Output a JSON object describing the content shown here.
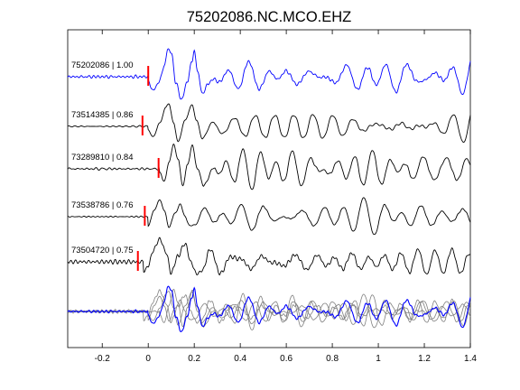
{
  "chart_data": {
    "type": "line",
    "title": "75202086.NC.MCO.EHZ",
    "xlabel": "",
    "ylabel": "",
    "xlim": [
      -0.35,
      1.4
    ],
    "xticks": [
      -0.2,
      0,
      0.2,
      0.4,
      0.6,
      0.8,
      1,
      1.2,
      1.4
    ],
    "xtick_labels": [
      "-0.2",
      "0",
      "0.2",
      "0.4",
      "0.6",
      "0.8",
      "1",
      "1.2",
      "1.4"
    ],
    "grid": false,
    "colors": {
      "reference": "#0000ff",
      "trace": "#000000",
      "pick": "#ff0000",
      "overlay": "#808080"
    },
    "series": [
      {
        "name": "75202086 | 1.00",
        "color": "#0000ff",
        "pick_time": 0.0,
        "seed": 1,
        "amplitude": 1.0,
        "onset": -0.005,
        "arrival": [
          [
            0.0,
            -0.15
          ],
          [
            0.02,
            -0.45
          ],
          [
            0.045,
            -0.2
          ],
          [
            0.07,
            0.35
          ],
          [
            0.085,
            0.9
          ],
          [
            0.1,
            0.8
          ],
          [
            0.12,
            -0.2
          ],
          [
            0.145,
            -0.75
          ],
          [
            0.17,
            -0.15
          ],
          [
            0.19,
            0.5
          ],
          [
            0.2,
            0.85
          ],
          [
            0.215,
            0.15
          ],
          [
            0.235,
            -0.55
          ],
          [
            0.26,
            -0.25
          ]
        ],
        "coda": 0.4,
        "pre_noise": 0.06
      },
      {
        "name": "73514385 | 0.86",
        "color": "#000000",
        "pick_time": -0.025,
        "seed": 2,
        "amplitude": 1.0,
        "onset": -0.01,
        "arrival": [
          [
            0.0,
            -0.1
          ],
          [
            0.02,
            -0.35
          ],
          [
            0.05,
            0.1
          ],
          [
            0.075,
            0.6
          ],
          [
            0.09,
            0.75
          ],
          [
            0.11,
            0.1
          ],
          [
            0.13,
            -0.5
          ],
          [
            0.16,
            0.2
          ],
          [
            0.19,
            0.7
          ],
          [
            0.21,
            0.2
          ],
          [
            0.235,
            -0.4
          ]
        ],
        "coda": 0.45,
        "pre_noise": 0.05
      },
      {
        "name": "73289810 | 0.84",
        "color": "#000000",
        "pick_time": 0.045,
        "seed": 3,
        "amplitude": 1.0,
        "onset": 0.03,
        "arrival": [
          [
            0.05,
            -0.15
          ],
          [
            0.07,
            -0.4
          ],
          [
            0.09,
            0.2
          ],
          [
            0.11,
            0.8
          ],
          [
            0.13,
            0.3
          ],
          [
            0.15,
            -0.55
          ],
          [
            0.17,
            0.1
          ],
          [
            0.19,
            0.75
          ],
          [
            0.215,
            0.0
          ],
          [
            0.24,
            -0.55
          ]
        ],
        "coda": 0.45,
        "pre_noise": 0.04
      },
      {
        "name": "73538786 | 0.76",
        "color": "#000000",
        "pick_time": -0.015,
        "seed": 4,
        "amplitude": 1.0,
        "onset": -0.01,
        "arrival": [
          [
            0.0,
            -0.3
          ],
          [
            0.025,
            0.2
          ],
          [
            0.05,
            0.55
          ],
          [
            0.07,
            0.2
          ],
          [
            0.09,
            -0.35
          ],
          [
            0.115,
            0.1
          ],
          [
            0.14,
            0.4
          ],
          [
            0.16,
            0.0
          ],
          [
            0.18,
            -0.3
          ]
        ],
        "coda": 0.35,
        "pre_noise": 0.035
      },
      {
        "name": "73504720 | 0.75",
        "color": "#000000",
        "pick_time": -0.045,
        "seed": 5,
        "amplitude": 1.0,
        "onset": -0.03,
        "arrival": [
          [
            -0.02,
            -0.3
          ],
          [
            0.0,
            -0.15
          ],
          [
            0.02,
            0.35
          ],
          [
            0.05,
            0.75
          ],
          [
            0.075,
            0.35
          ],
          [
            0.1,
            -0.35
          ],
          [
            0.13,
            0.2
          ],
          [
            0.16,
            0.6
          ],
          [
            0.185,
            0.0
          ],
          [
            0.21,
            -0.4
          ]
        ],
        "coda": 0.45,
        "pre_noise": 0.05
      }
    ]
  }
}
